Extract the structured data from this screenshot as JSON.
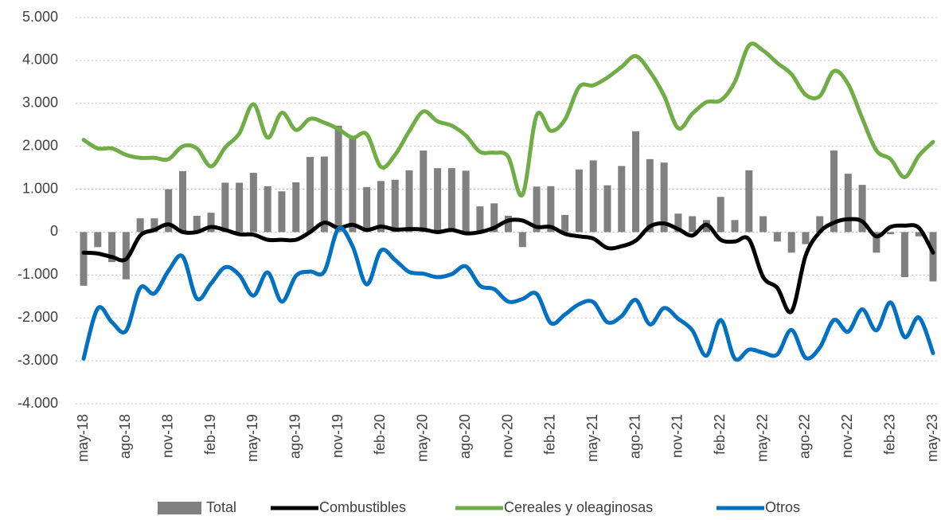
{
  "chart_data": {
    "type": "combo",
    "categories": [
      "may-18",
      null,
      null,
      "ago-18",
      null,
      null,
      "nov-18",
      null,
      null,
      "feb-19",
      null,
      null,
      "may-19",
      null,
      null,
      "ago-19",
      null,
      null,
      "nov-19",
      null,
      null,
      "feb-20",
      null,
      null,
      "may-20",
      null,
      null,
      "ago-20",
      null,
      null,
      "nov-20",
      null,
      null,
      "feb-21",
      null,
      null,
      "may-21",
      null,
      null,
      "ago-21",
      null,
      null,
      "nov-21",
      null,
      null,
      "feb-22",
      null,
      null,
      "may-22",
      null,
      null,
      "ago-22",
      null,
      null,
      "nov-22",
      null,
      null,
      "feb-23",
      null,
      null,
      "may-23"
    ],
    "ylim": [
      -4000,
      5000
    ],
    "yticks": [
      {
        "value": -4000,
        "label": "-4.000"
      },
      {
        "value": -3000,
        "label": "-3.000"
      },
      {
        "value": -2000,
        "label": "-2.000"
      },
      {
        "value": -1000,
        "label": "-1.000"
      },
      0,
      {
        "value": 1000,
        "label": "1.000"
      },
      {
        "value": 2000,
        "label": "2.000"
      },
      {
        "value": 3000,
        "label": "3.000"
      },
      {
        "value": 4000,
        "label": "4.000"
      },
      {
        "value": 5000,
        "label": "5.000"
      }
    ],
    "grid": true,
    "legend": "bottom",
    "series": [
      {
        "name": "Total",
        "type": "bar",
        "color": "#808080",
        "values": [
          -1250,
          -350,
          -700,
          -1100,
          320,
          320,
          1000,
          1420,
          380,
          450,
          1150,
          1150,
          1380,
          1070,
          950,
          1160,
          1750,
          1760,
          2480,
          2200,
          1050,
          1190,
          1220,
          1440,
          1900,
          1490,
          1490,
          1430,
          600,
          670,
          380,
          -350,
          1060,
          1070,
          400,
          1460,
          1670,
          1090,
          1540,
          2350,
          1700,
          1620,
          430,
          370,
          280,
          820,
          280,
          1440,
          370,
          -220,
          -480,
          -280,
          370,
          1900,
          1360,
          1100,
          -480,
          -50,
          -1050,
          -100,
          -1150
        ]
      },
      {
        "name": "Combustibles",
        "type": "line",
        "color": "#000000",
        "values": [
          -480,
          -500,
          -580,
          -630,
          -80,
          50,
          180,
          0,
          0,
          120,
          50,
          -50,
          -60,
          -180,
          -180,
          -180,
          0,
          220,
          100,
          170,
          50,
          130,
          60,
          70,
          60,
          0,
          50,
          -30,
          0,
          100,
          270,
          270,
          120,
          120,
          -40,
          -100,
          -150,
          -370,
          -330,
          -200,
          130,
          200,
          70,
          -80,
          170,
          -180,
          -220,
          -170,
          -1050,
          -1300,
          -1850,
          -550,
          0,
          220,
          300,
          250,
          -100,
          120,
          150,
          100,
          -480
        ]
      },
      {
        "name": "Cereales y oleaginosas",
        "type": "line",
        "color": "#70ad47",
        "values": [
          2150,
          1950,
          1950,
          1800,
          1730,
          1730,
          1700,
          2000,
          1950,
          1530,
          1970,
          2300,
          2980,
          2200,
          2780,
          2380,
          2640,
          2550,
          2400,
          2200,
          2280,
          1520,
          1800,
          2350,
          2810,
          2580,
          2480,
          2250,
          1870,
          1850,
          1750,
          870,
          2720,
          2360,
          2620,
          3380,
          3420,
          3600,
          3850,
          4100,
          3740,
          3180,
          2420,
          2760,
          3030,
          3070,
          3500,
          4350,
          4230,
          3940,
          3680,
          3200,
          3170,
          3750,
          3450,
          2650,
          1900,
          1700,
          1280,
          1780,
          2100
        ]
      },
      {
        "name": "Otros",
        "type": "line",
        "color": "#0070c0",
        "values": [
          -2950,
          -1780,
          -2100,
          -2300,
          -1300,
          -1430,
          -900,
          -570,
          -1550,
          -1200,
          -820,
          -1000,
          -1480,
          -940,
          -1620,
          -1020,
          -920,
          -920,
          80,
          -330,
          -1220,
          -430,
          -650,
          -930,
          -970,
          -1050,
          -980,
          -800,
          -1250,
          -1330,
          -1620,
          -1560,
          -1440,
          -2120,
          -1920,
          -1680,
          -1630,
          -2100,
          -1960,
          -1580,
          -2150,
          -1770,
          -2020,
          -2290,
          -2880,
          -2050,
          -2950,
          -2740,
          -2810,
          -2850,
          -2280,
          -2930,
          -2690,
          -2050,
          -2320,
          -1800,
          -2290,
          -1640,
          -2450,
          -1990,
          -2820
        ]
      }
    ]
  }
}
